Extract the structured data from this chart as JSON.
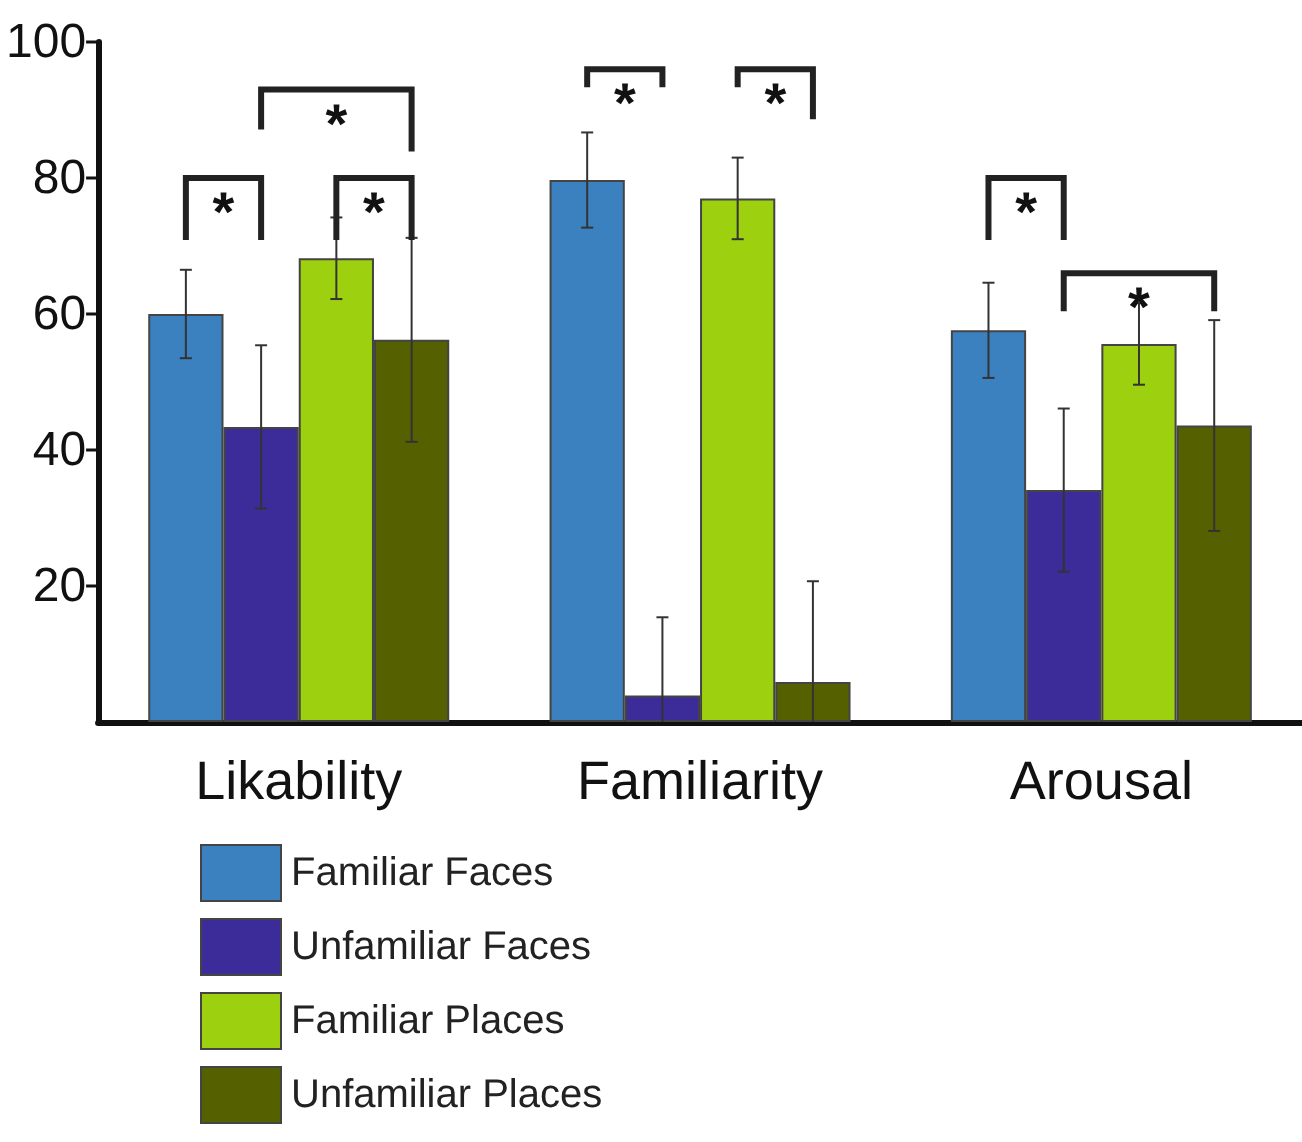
{
  "chart_data": {
    "type": "bar",
    "categories": [
      "Likability",
      "Familiarity",
      "Arousal"
    ],
    "series": [
      {
        "name": "Familiar Faces",
        "color": "#3b80bf",
        "values": [
          60,
          79.7,
          57.6
        ],
        "errors": [
          6.5,
          7,
          7
        ]
      },
      {
        "name": "Unfamiliar Faces",
        "color": "#3c2c99",
        "values": [
          43.4,
          3.9,
          34.1
        ],
        "errors": [
          12,
          [
            0,
            15.4
          ],
          12
        ]
      },
      {
        "name": "Familiar Places",
        "color": "#9dd00e",
        "values": [
          68.2,
          77,
          55.6
        ],
        "errors": [
          6,
          6,
          6
        ]
      },
      {
        "name": "Unfamiliar Places",
        "color": "#556100",
        "values": [
          56.2,
          5.9,
          43.6
        ],
        "errors": [
          15,
          [
            0,
            20.7
          ],
          15.5
        ]
      }
    ],
    "ylim": [
      0,
      100
    ],
    "yticks": [
      20,
      40,
      60,
      80,
      100
    ],
    "grid": false,
    "legend": "bottom",
    "annotations": [
      "*",
      "*",
      "*",
      "*",
      "*",
      "*",
      "*"
    ]
  }
}
